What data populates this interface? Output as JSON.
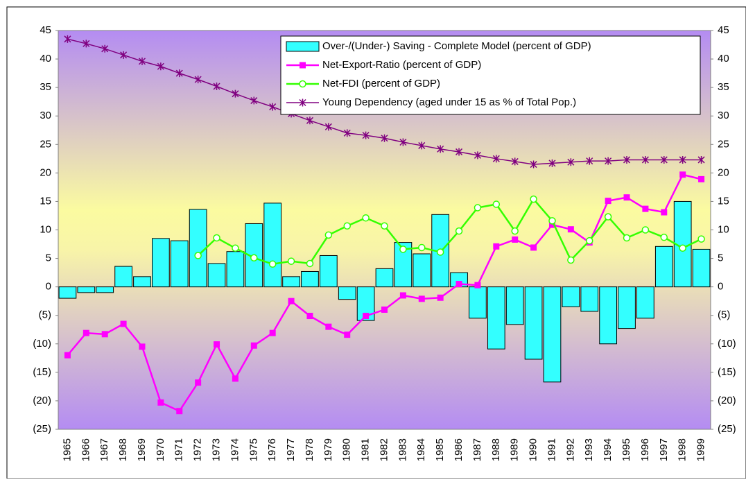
{
  "chart_data": {
    "type": "bar_line",
    "categories": [
      "1965",
      "1966",
      "1967",
      "1968",
      "1969",
      "1970",
      "1971",
      "1972",
      "1973",
      "1974",
      "1975",
      "1976",
      "1977",
      "1978",
      "1979",
      "1980",
      "1981",
      "1982",
      "1983",
      "1984",
      "1985",
      "1986",
      "1987",
      "1988",
      "1989",
      "1990",
      "1991",
      "1992",
      "1993",
      "1994",
      "1995",
      "1996",
      "1997",
      "1998",
      "1999"
    ],
    "series": [
      {
        "name": "Over-/(Under-) Saving - Complete Model (percent of GDP)",
        "type": "bar",
        "color": "#33ffff",
        "values": [
          -2,
          -1,
          -1,
          3.6,
          1.8,
          8.5,
          8.1,
          13.6,
          4.1,
          6.2,
          11.1,
          14.7,
          1.8,
          2.7,
          5.5,
          -2.2,
          -5.9,
          3.2,
          7.8,
          5.8,
          12.7,
          2.5,
          -5.5,
          -10.9,
          -6.6,
          -12.7,
          -16.7,
          -3.5,
          -4.3,
          -10,
          -7.3,
          -5.5,
          7.1,
          15,
          6.6
        ]
      },
      {
        "name": "Net-Export-Ratio (percent of GDP)",
        "type": "line",
        "marker": "square",
        "color": "#ff00ff",
        "values": [
          -12,
          -8.1,
          -8.3,
          -6.5,
          -10.5,
          -20.3,
          -21.8,
          -16.8,
          -10.1,
          -16.1,
          -10.3,
          -8.1,
          -2.5,
          -5.1,
          -7,
          -8.4,
          -5.1,
          -4,
          -1.5,
          -2.1,
          -1.9,
          0.5,
          0.3,
          7.1,
          8.3,
          6.9,
          10.9,
          10.1,
          7.8,
          15.1,
          15.7,
          13.7,
          13.1,
          19.7,
          18.9
        ]
      },
      {
        "name": "Net-FDI (percent of GDP)",
        "type": "line",
        "marker": "circle",
        "color": "#33ff00",
        "values": [
          null,
          null,
          null,
          null,
          null,
          null,
          null,
          5.5,
          8.6,
          6.8,
          5.1,
          4,
          4.5,
          4.1,
          9.1,
          10.7,
          12.1,
          10.7,
          6.6,
          6.9,
          6.1,
          9.8,
          13.9,
          14.5,
          9.8,
          15.4,
          11.6,
          4.7,
          8.1,
          12.3,
          8.6,
          10,
          8.7,
          6.8,
          8.4
        ]
      },
      {
        "name": "Young Dependency (aged under 15 as % of Total Pop.)",
        "type": "line",
        "marker": "star",
        "color": "#800080",
        "axis": "y2",
        "values": [
          43.5,
          42.7,
          41.8,
          40.7,
          39.6,
          38.7,
          37.5,
          36.4,
          35.2,
          33.9,
          32.7,
          31.6,
          30.4,
          29.2,
          28.1,
          27,
          26.6,
          26.1,
          25.4,
          24.8,
          24.2,
          23.7,
          23.1,
          22.5,
          22,
          21.5,
          21.7,
          21.9,
          22.1,
          22.1,
          22.3,
          22.3,
          22.3,
          22.3,
          22.3
        ]
      }
    ],
    "ylim": [
      -25,
      45
    ],
    "yticks": [
      45,
      40,
      35,
      30,
      25,
      20,
      15,
      10,
      5,
      0,
      {
        "value": -5,
        "label": "(5)"
      },
      {
        "value": -10,
        "label": "(10)"
      },
      {
        "value": -15,
        "label": "(15)"
      },
      {
        "value": -20,
        "label": "(20)"
      },
      {
        "value": -25,
        "label": "(25)"
      }
    ],
    "y2lim": [
      -25,
      45
    ],
    "y2ticks": [
      45,
      40,
      35,
      30,
      25,
      20,
      15,
      10,
      5,
      0,
      {
        "value": -5,
        "label": "(5)"
      },
      {
        "value": -10,
        "label": "(10)"
      },
      {
        "value": -15,
        "label": "(15)"
      },
      {
        "value": -20,
        "label": "(20)"
      },
      {
        "value": -25,
        "label": "(25)"
      }
    ],
    "negative_tick_color": "#ff0000",
    "legend": "upper right"
  }
}
